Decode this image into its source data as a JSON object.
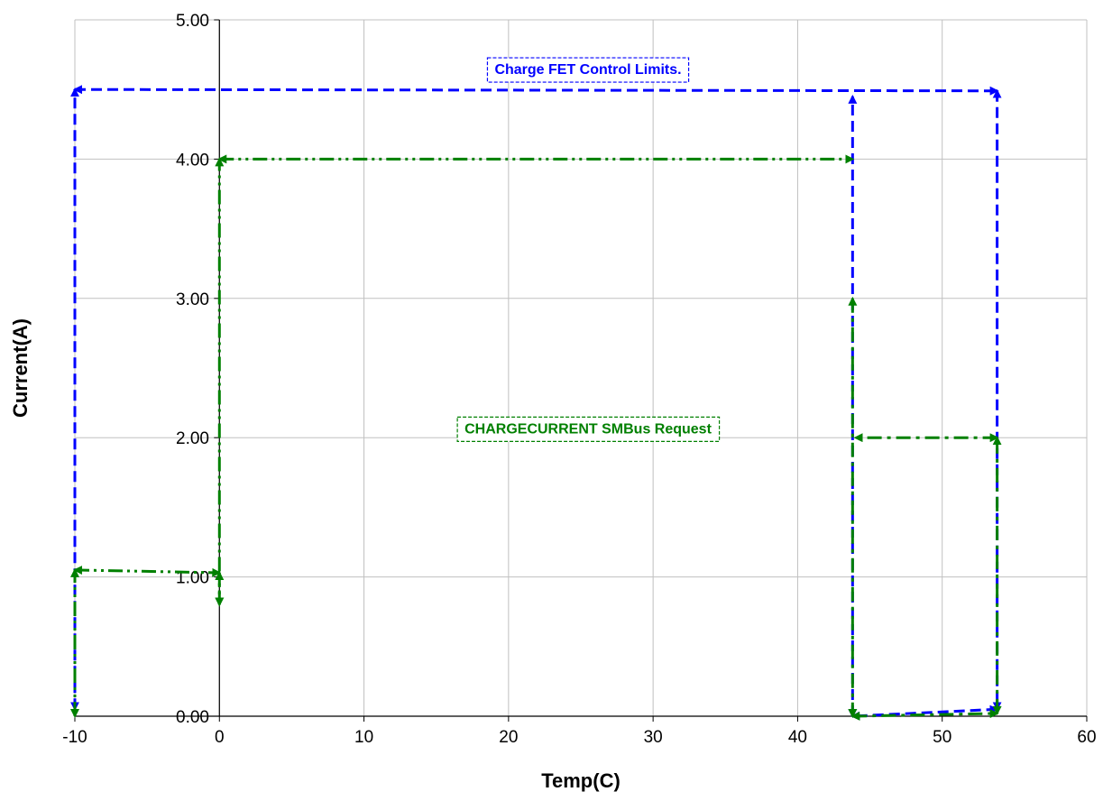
{
  "chart_data": {
    "type": "line",
    "title": "",
    "xlabel": "Temp(C)",
    "ylabel": "Current(A)",
    "xlim": [
      -10,
      60
    ],
    "ylim": [
      0,
      5
    ],
    "x_ticks": [
      "-10",
      "0",
      "10",
      "20",
      "30",
      "40",
      "50",
      "60"
    ],
    "y_ticks": [
      "0.00",
      "1.00",
      "2.00",
      "3.00",
      "4.00",
      "5.00"
    ],
    "grid": true,
    "colors": {
      "fet_limits": "#0000ff",
      "smbus_request": "#008000",
      "grid": "#c0c0c0"
    },
    "annotations": [
      {
        "text": "Charge FET Control Limits.",
        "color": "#0000ff",
        "x": 25.5,
        "y": 4.65
      },
      {
        "text": "CHARGECURRENT SMBus Request",
        "color": "#008000",
        "x": 25.5,
        "y": 2.07
      }
    ],
    "series": [
      {
        "color": "#0000ff",
        "style": "dashed",
        "points": [
          [
            -10,
            0.05
          ],
          [
            -10,
            4.5
          ],
          [
            53.8,
            4.49
          ],
          [
            53.8,
            0.05
          ],
          [
            43.8,
            0.0
          ],
          [
            43.8,
            4.45
          ]
        ]
      },
      {
        "color": "#008000",
        "style": "dash-dot-dot",
        "points": [
          [
            -10,
            0.0
          ],
          [
            -10,
            1.05
          ],
          [
            0,
            1.03
          ],
          [
            0,
            0.8
          ],
          [
            0,
            4.0
          ],
          [
            43.8,
            4.0
          ]
        ]
      },
      {
        "color": "#008000",
        "style": "dash-dot",
        "points": [
          [
            43.8,
            3.0
          ],
          [
            43.8,
            0.0
          ],
          [
            53.8,
            0.02
          ],
          [
            53.8,
            2.0
          ],
          [
            44,
            2.0
          ]
        ]
      }
    ]
  }
}
